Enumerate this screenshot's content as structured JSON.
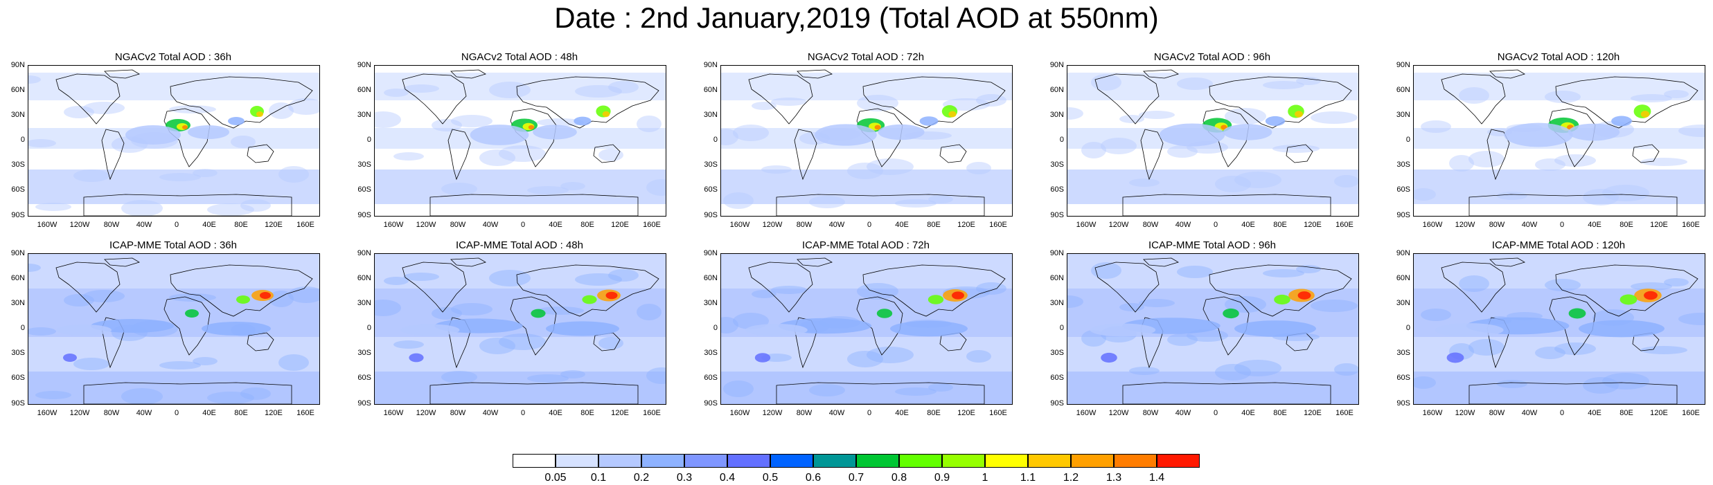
{
  "title": "Date : 2nd January,2019 (Total AOD at 550nm)",
  "lat_labels": [
    "90N",
    "60N",
    "30N",
    "0",
    "30S",
    "60S",
    "90S"
  ],
  "lon_labels": [
    "160W",
    "120W",
    "80W",
    "40W",
    "0",
    "40E",
    "80E",
    "120E",
    "160E"
  ],
  "panels": [
    {
      "title": "NGACv2 Total AOD : 36h"
    },
    {
      "title": "NGACv2 Total AOD : 48h"
    },
    {
      "title": "NGACv2 Total AOD : 72h"
    },
    {
      "title": "NGACv2 Total AOD : 96h"
    },
    {
      "title": "NGACv2 Total AOD : 120h"
    },
    {
      "title": "ICAP-MME Total AOD : 36h"
    },
    {
      "title": "ICAP-MME Total AOD : 48h"
    },
    {
      "title": "ICAP-MME Total AOD : 72h"
    },
    {
      "title": "ICAP-MME Total AOD : 96h"
    },
    {
      "title": "ICAP-MME Total AOD : 120h"
    }
  ],
  "colorbar": {
    "labels": [
      "0.05",
      "0.1",
      "0.2",
      "0.3",
      "0.4",
      "0.5",
      "0.6",
      "0.7",
      "0.8",
      "0.9",
      "1",
      "1.1",
      "1.2",
      "1.3",
      "1.4"
    ],
    "colors": [
      "#ffffff",
      "#d6e2ff",
      "#b5c9ff",
      "#8eb2ff",
      "#7f96ff",
      "#6370ff",
      "#0063ff",
      "#009696",
      "#00c633",
      "#63ff00",
      "#96ff00",
      "#ffff00",
      "#ffc800",
      "#ffa000",
      "#ff7d00",
      "#ff1900"
    ]
  }
}
